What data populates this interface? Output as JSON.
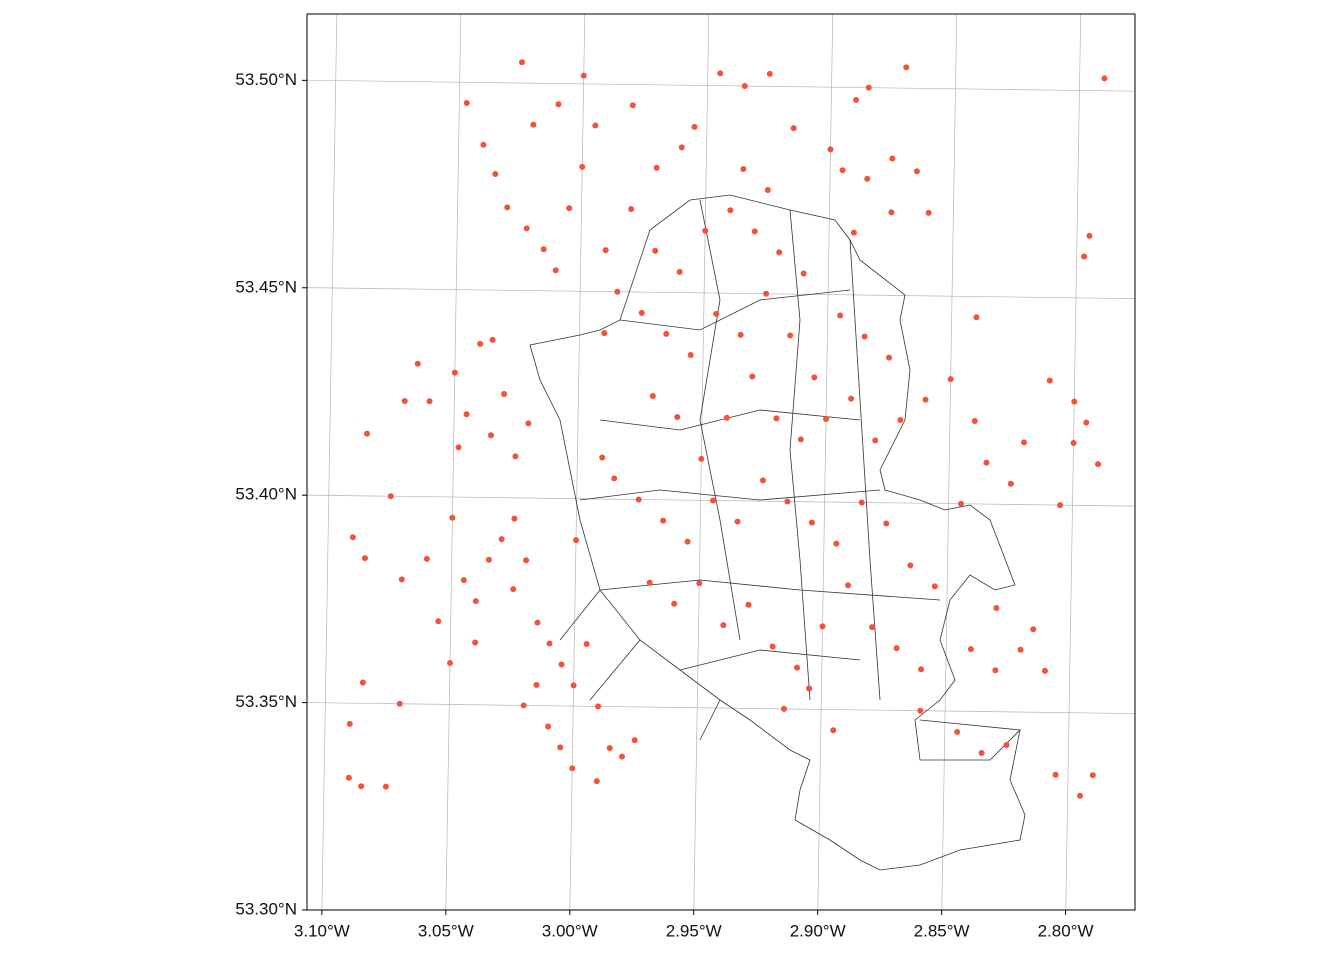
{
  "chart_data": {
    "type": "scatter",
    "color": "#f4513a",
    "grid": true,
    "xlim": [
      -3.106,
      -2.772
    ],
    "ylim": [
      53.3,
      53.516
    ],
    "xticks": [
      {
        "value": -3.1,
        "label": "3.10°W"
      },
      {
        "value": -3.05,
        "label": "3.05°W"
      },
      {
        "value": -3.0,
        "label": "3.00°W"
      },
      {
        "value": -2.95,
        "label": "2.95°W"
      },
      {
        "value": -2.9,
        "label": "2.90°W"
      },
      {
        "value": -2.85,
        "label": "2.85°W"
      },
      {
        "value": -2.8,
        "label": "2.80°W"
      }
    ],
    "yticks": [
      {
        "value": 53.3,
        "label": "53.30°N"
      },
      {
        "value": 53.35,
        "label": "53.35°N"
      },
      {
        "value": 53.4,
        "label": "53.40°N"
      },
      {
        "value": 53.45,
        "label": "53.45°N"
      },
      {
        "value": 53.5,
        "label": "53.50°N"
      }
    ],
    "x": [
      -3.047,
      -3.04,
      -3.035,
      -3.03,
      -3.022,
      -3.015,
      -3.01,
      -3.005,
      -3.0,
      -2.995,
      -3.02,
      -3.01,
      -2.99,
      -2.985,
      -2.975,
      -2.98,
      -2.97,
      -2.96,
      -2.955,
      -2.98,
      -3.0,
      -2.99,
      -2.945,
      -2.935,
      -2.925,
      -2.915,
      -2.9,
      -2.895,
      -2.885,
      -2.875,
      -2.865,
      -2.89,
      -2.885,
      -2.87,
      -2.935,
      -2.925,
      -2.89,
      -2.875,
      -2.86,
      -3.025,
      -2.79,
      -2.795,
      -2.797,
      -3.065,
      -3.06,
      -3.05,
      -3.045,
      -3.04,
      -3.035,
      -3.03,
      -3.025,
      -3.048,
      -3.02,
      -3.085,
      -3.07,
      -3.035,
      -3.09,
      -3.085,
      -3.075,
      -3.07,
      -3.06,
      -3.055,
      -3.05,
      -3.045,
      -3.04,
      -3.035,
      -3.03,
      -3.025,
      -3.02,
      -3.015,
      -3.01,
      -3.005,
      -3.0,
      -2.995,
      -3.015,
      -3.02,
      -3.01,
      -3.005,
      -3.0,
      -2.99,
      -2.985,
      -2.98,
      -2.975,
      -3.09,
      -3.09,
      -3.085,
      -3.075,
      -3.07,
      -3.085,
      -3.05,
      -3.04,
      -3.025,
      -3.0,
      -2.99,
      -2.97,
      -2.96,
      -2.95,
      -2.94,
      -2.93,
      -2.92,
      -2.91,
      -2.965,
      -2.955,
      -2.945,
      -2.935,
      -2.925,
      -2.915,
      -2.905,
      -2.895,
      -2.885,
      -2.875,
      -2.97,
      -2.96,
      -2.95,
      -2.94,
      -2.93,
      -2.92,
      -2.91,
      -2.9,
      -2.89,
      -2.88,
      -2.87,
      -2.86,
      -2.99,
      -2.985,
      -2.975,
      -2.965,
      -2.955,
      -2.945,
      -2.935,
      -2.925,
      -2.915,
      -2.905,
      -2.895,
      -2.885,
      -2.875,
      -2.865,
      -2.855,
      -2.97,
      -2.96,
      -2.95,
      -2.94,
      -2.93,
      -2.92,
      -2.91,
      -2.9,
      -2.89,
      -2.88,
      -2.87,
      -2.86,
      -2.915,
      -2.905,
      -2.895,
      -2.86,
      -2.845,
      -2.835,
      -2.825,
      -2.85,
      -2.84,
      -2.835,
      -2.825,
      -2.82,
      -2.845,
      -2.81,
      -2.8,
      -2.795,
      -2.79,
      -2.805,
      -2.8,
      -2.84,
      -2.83,
      -2.82,
      -2.83,
      -2.84,
      -2.81,
      -2.805,
      -2.795,
      -2.79,
      -2.815
    ],
    "values": [
      53.495,
      53.485,
      53.478,
      53.47,
      53.465,
      53.46,
      53.455,
      53.47,
      53.48,
      53.49,
      53.49,
      53.495,
      53.46,
      53.45,
      53.445,
      53.47,
      53.48,
      53.485,
      53.49,
      53.495,
      53.502,
      53.44,
      53.503,
      53.5,
      53.503,
      53.49,
      53.485,
      53.48,
      53.478,
      53.483,
      53.48,
      53.497,
      53.5,
      53.505,
      53.48,
      53.475,
      53.465,
      53.47,
      53.47,
      53.505,
      53.503,
      53.465,
      53.46,
      53.432,
      53.423,
      53.43,
      53.42,
      53.437,
      53.415,
      53.425,
      53.41,
      53.412,
      53.418,
      53.415,
      53.423,
      53.438,
      53.39,
      53.385,
      53.4,
      53.38,
      53.385,
      53.37,
      53.395,
      53.38,
      53.375,
      53.385,
      53.39,
      53.378,
      53.385,
      53.37,
      53.365,
      53.36,
      53.355,
      53.365,
      53.355,
      53.35,
      53.345,
      53.34,
      53.335,
      53.35,
      53.34,
      53.338,
      53.342,
      53.345,
      53.332,
      53.33,
      53.33,
      53.35,
      53.355,
      53.36,
      53.365,
      53.395,
      53.39,
      53.332,
      53.46,
      53.455,
      53.465,
      53.47,
      53.465,
      53.46,
      53.455,
      53.44,
      53.435,
      53.445,
      53.44,
      53.45,
      53.44,
      53.43,
      53.445,
      53.44,
      53.435,
      53.425,
      53.42,
      53.41,
      53.42,
      53.43,
      53.42,
      53.415,
      53.42,
      53.425,
      53.415,
      53.42,
      53.425,
      53.41,
      53.405,
      53.4,
      53.395,
      53.39,
      53.4,
      53.395,
      53.405,
      53.4,
      53.395,
      53.39,
      53.4,
      53.395,
      53.385,
      53.38,
      53.38,
      53.375,
      53.38,
      53.37,
      53.375,
      53.365,
      53.36,
      53.37,
      53.38,
      53.37,
      53.365,
      53.36,
      53.35,
      53.355,
      53.345,
      53.35,
      53.345,
      53.34,
      53.342,
      53.43,
      53.42,
      53.41,
      53.405,
      53.415,
      53.4,
      53.43,
      53.425,
      53.42,
      53.41,
      53.4,
      53.415,
      53.445,
      53.375,
      53.365,
      53.36,
      53.365,
      53.36,
      53.335,
      53.33,
      53.335,
      53.37
    ]
  }
}
